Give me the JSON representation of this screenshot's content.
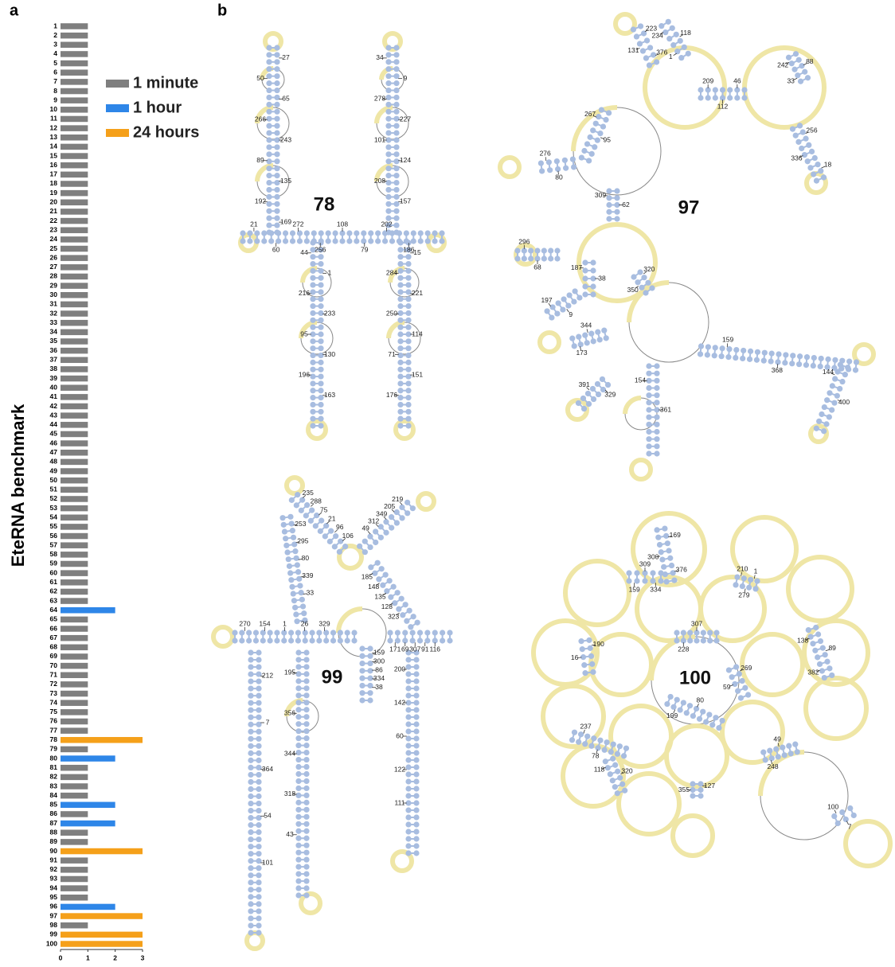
{
  "panel_labels": [
    "a",
    "b"
  ],
  "chart_data": {
    "type": "bar",
    "orientation": "horizontal",
    "ylabel": "EteRNA benchmark",
    "categories": [
      "1",
      "2",
      "3",
      "4",
      "5",
      "6",
      "7",
      "8",
      "9",
      "10",
      "11",
      "12",
      "13",
      "14",
      "15",
      "16",
      "17",
      "18",
      "19",
      "20",
      "21",
      "22",
      "23",
      "24",
      "25",
      "26",
      "27",
      "28",
      "29",
      "30",
      "31",
      "32",
      "33",
      "34",
      "35",
      "36",
      "37",
      "38",
      "39",
      "40",
      "41",
      "42",
      "43",
      "44",
      "45",
      "46",
      "47",
      "48",
      "49",
      "50",
      "51",
      "52",
      "53",
      "54",
      "55",
      "56",
      "57",
      "58",
      "59",
      "60",
      "61",
      "62",
      "63",
      "64",
      "65",
      "66",
      "67",
      "68",
      "69",
      "70",
      "71",
      "72",
      "73",
      "74",
      "75",
      "76",
      "77",
      "78",
      "79",
      "80",
      "81",
      "82",
      "83",
      "84",
      "85",
      "86",
      "87",
      "88",
      "89",
      "90",
      "91",
      "92",
      "93",
      "94",
      "95",
      "96",
      "97",
      "98",
      "99",
      "100"
    ],
    "series": [
      {
        "name": "1 minute",
        "color": "#7f7f7f",
        "values": [
          1,
          1,
          1,
          1,
          1,
          1,
          1,
          1,
          1,
          1,
          1,
          1,
          1,
          1,
          1,
          1,
          1,
          1,
          1,
          1,
          1,
          1,
          1,
          1,
          1,
          1,
          1,
          1,
          1,
          1,
          1,
          1,
          1,
          1,
          1,
          1,
          1,
          1,
          1,
          1,
          1,
          1,
          1,
          1,
          1,
          1,
          1,
          1,
          1,
          1,
          1,
          1,
          1,
          1,
          1,
          1,
          1,
          1,
          1,
          1,
          1,
          1,
          1,
          null,
          1,
          1,
          1,
          1,
          1,
          1,
          1,
          1,
          1,
          1,
          1,
          1,
          1,
          null,
          1,
          null,
          1,
          1,
          1,
          1,
          null,
          1,
          null,
          1,
          1,
          null,
          1,
          1,
          1,
          1,
          1,
          null,
          null,
          1,
          null,
          null
        ]
      },
      {
        "name": "1 hour",
        "color": "#2e86e8",
        "values": [
          null,
          null,
          null,
          null,
          null,
          null,
          null,
          null,
          null,
          null,
          null,
          null,
          null,
          null,
          null,
          null,
          null,
          null,
          null,
          null,
          null,
          null,
          null,
          null,
          null,
          null,
          null,
          null,
          null,
          null,
          null,
          null,
          null,
          null,
          null,
          null,
          null,
          null,
          null,
          null,
          null,
          null,
          null,
          null,
          null,
          null,
          null,
          null,
          null,
          null,
          null,
          null,
          null,
          null,
          null,
          null,
          null,
          null,
          null,
          null,
          null,
          null,
          null,
          2,
          null,
          null,
          null,
          null,
          null,
          null,
          null,
          null,
          null,
          null,
          null,
          null,
          null,
          null,
          null,
          2,
          null,
          null,
          null,
          null,
          2,
          null,
          2,
          null,
          null,
          null,
          null,
          null,
          null,
          null,
          null,
          2,
          null,
          null,
          null,
          null
        ]
      },
      {
        "name": "24 hours",
        "color": "#f5a01a",
        "values": [
          null,
          null,
          null,
          null,
          null,
          null,
          null,
          null,
          null,
          null,
          null,
          null,
          null,
          null,
          null,
          null,
          null,
          null,
          null,
          null,
          null,
          null,
          null,
          null,
          null,
          null,
          null,
          null,
          null,
          null,
          null,
          null,
          null,
          null,
          null,
          null,
          null,
          null,
          null,
          null,
          null,
          null,
          null,
          null,
          null,
          null,
          null,
          null,
          null,
          null,
          null,
          null,
          null,
          null,
          null,
          null,
          null,
          null,
          null,
          null,
          null,
          null,
          null,
          null,
          null,
          null,
          null,
          null,
          null,
          null,
          null,
          null,
          null,
          null,
          null,
          null,
          null,
          3,
          null,
          null,
          null,
          null,
          null,
          null,
          null,
          null,
          null,
          null,
          null,
          3,
          null,
          null,
          null,
          null,
          null,
          null,
          3,
          null,
          3,
          3
        ]
      }
    ],
    "xlim": [
      0,
      3
    ],
    "xticks": [
      0,
      1,
      2,
      3
    ],
    "legend": "top-right"
  },
  "structures": [
    {
      "id": "78",
      "labels": [
        "27",
        "34",
        "21",
        "44",
        "15",
        "50",
        "9",
        "60",
        "1",
        "284",
        "65",
        "278",
        "272",
        "216",
        "221",
        "266",
        "227",
        "256",
        "233",
        "250",
        "243",
        "101",
        "108",
        "95",
        "114",
        "89",
        "124",
        "79",
        "130",
        "71",
        "135",
        "208",
        "202",
        "196",
        "151",
        "192",
        "157",
        "186",
        "163",
        "176",
        "169"
      ]
    },
    {
      "id": "97",
      "labels": [
        "223",
        "234",
        "209",
        "242",
        "256",
        "267",
        "276",
        "309",
        "296",
        "187",
        "197",
        "173",
        "320",
        "154",
        "159",
        "144",
        "329",
        "131",
        "118",
        "112",
        "88",
        "336",
        "95",
        "80",
        "62",
        "68",
        "38",
        "9",
        "344",
        "350",
        "361",
        "368",
        "400",
        "391",
        "376",
        "1",
        "46",
        "33",
        "18"
      ]
    },
    {
      "id": "99",
      "labels": [
        "235",
        "219",
        "253",
        "185",
        "270",
        "171",
        "212",
        "195",
        "159",
        "200",
        "288",
        "205",
        "295",
        "148",
        "154",
        "69",
        "7",
        "356",
        "300",
        "142",
        "75",
        "349",
        "80",
        "135",
        "1",
        "307",
        "364",
        "344",
        "86",
        "60",
        "21",
        "312",
        "339",
        "128",
        "26",
        "91",
        "54",
        "318",
        "334",
        "122",
        "96",
        "49",
        "33",
        "323",
        "329",
        "116",
        "101",
        "43",
        "38",
        "111",
        "106"
      ]
    },
    {
      "id": "100",
      "labels": [
        "169",
        "159",
        "210",
        "138",
        "190",
        "228",
        "269",
        "199",
        "237",
        "118",
        "127",
        "248",
        "100",
        "300",
        "309",
        "279",
        "89",
        "16",
        "307",
        "59",
        "80",
        "78",
        "320",
        "355",
        "49",
        "7",
        "376",
        "334",
        "1",
        "382"
      ]
    }
  ]
}
